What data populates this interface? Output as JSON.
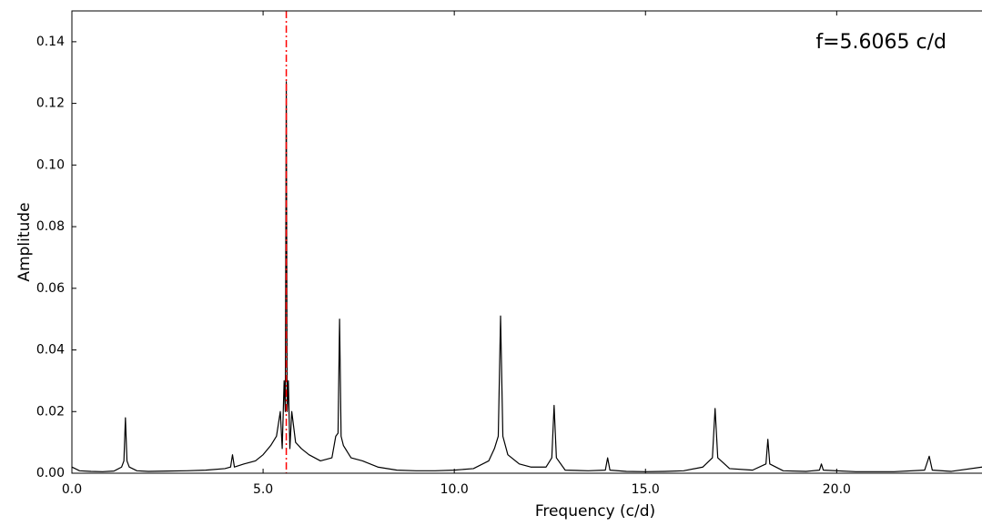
{
  "chart_data": {
    "type": "line",
    "xlabel": "Frequency (c/d)",
    "ylabel": "Amplitude",
    "annotation": {
      "text": "f=5.6065 c/d",
      "x": 5.6065,
      "color": "#ff0000"
    },
    "xlim": [
      0,
      23.8
    ],
    "ylim": [
      0,
      0.15
    ],
    "xticks": [
      {
        "value": 0,
        "label": "0.0"
      },
      {
        "value": 5,
        "label": "5.0"
      },
      {
        "value": 10,
        "label": "10.0"
      },
      {
        "value": 15,
        "label": "15.0"
      },
      {
        "value": 20,
        "label": "20.0"
      }
    ],
    "yticks": [
      {
        "value": 0,
        "label": "0.00"
      },
      {
        "value": 0.02,
        "label": "0.02"
      },
      {
        "value": 0.04,
        "label": "0.04"
      },
      {
        "value": 0.06,
        "label": "0.06"
      },
      {
        "value": 0.08,
        "label": "0.08"
      },
      {
        "value": 0.1,
        "label": "0.10"
      },
      {
        "value": 0.12,
        "label": "0.12"
      },
      {
        "value": 0.14,
        "label": "0.14"
      }
    ],
    "series": [
      {
        "color": "#000000",
        "x": [
          0,
          0.2,
          0.5,
          0.8,
          1.1,
          1.3,
          1.36,
          1.4,
          1.44,
          1.5,
          1.7,
          2.0,
          2.5,
          3.0,
          3.5,
          4.0,
          4.15,
          4.2,
          4.25,
          4.5,
          4.8,
          5.0,
          5.2,
          5.35,
          5.45,
          5.5,
          5.55,
          5.58,
          5.6065,
          5.63,
          5.66,
          5.7,
          5.75,
          5.85,
          6.0,
          6.2,
          6.5,
          6.8,
          6.9,
          6.96,
          7.0,
          7.04,
          7.1,
          7.3,
          7.6,
          8.0,
          8.5,
          9.0,
          9.5,
          10.0,
          10.5,
          10.9,
          11.05,
          11.15,
          11.21,
          11.27,
          11.4,
          11.7,
          12.0,
          12.4,
          12.55,
          12.61,
          12.67,
          12.9,
          13.5,
          13.95,
          14.01,
          14.07,
          14.5,
          15.0,
          15.5,
          16.0,
          16.5,
          16.75,
          16.82,
          16.89,
          17.2,
          17.8,
          18.15,
          18.2,
          18.25,
          18.6,
          19.2,
          19.55,
          19.6,
          19.65,
          20.5,
          21.5,
          22.3,
          22.42,
          22.5,
          23.0,
          23.8
        ],
        "values": [
          0.002,
          0.0008,
          0.0006,
          0.0005,
          0.0007,
          0.002,
          0.004,
          0.018,
          0.004,
          0.002,
          0.0008,
          0.0006,
          0.0007,
          0.0008,
          0.001,
          0.0015,
          0.002,
          0.006,
          0.002,
          0.003,
          0.004,
          0.006,
          0.009,
          0.012,
          0.02,
          0.008,
          0.03,
          0.02,
          0.127,
          0.02,
          0.03,
          0.008,
          0.02,
          0.01,
          0.008,
          0.006,
          0.004,
          0.005,
          0.012,
          0.013,
          0.05,
          0.012,
          0.009,
          0.005,
          0.004,
          0.002,
          0.001,
          0.0008,
          0.0008,
          0.001,
          0.0015,
          0.004,
          0.008,
          0.012,
          0.051,
          0.012,
          0.006,
          0.003,
          0.002,
          0.002,
          0.005,
          0.022,
          0.005,
          0.001,
          0.0008,
          0.001,
          0.005,
          0.001,
          0.0006,
          0.0005,
          0.0006,
          0.0008,
          0.002,
          0.005,
          0.021,
          0.005,
          0.0015,
          0.001,
          0.003,
          0.011,
          0.003,
          0.0008,
          0.0006,
          0.001,
          0.003,
          0.001,
          0.0005,
          0.0005,
          0.001,
          0.0055,
          0.001,
          0.0006,
          0.002
        ]
      }
    ]
  }
}
